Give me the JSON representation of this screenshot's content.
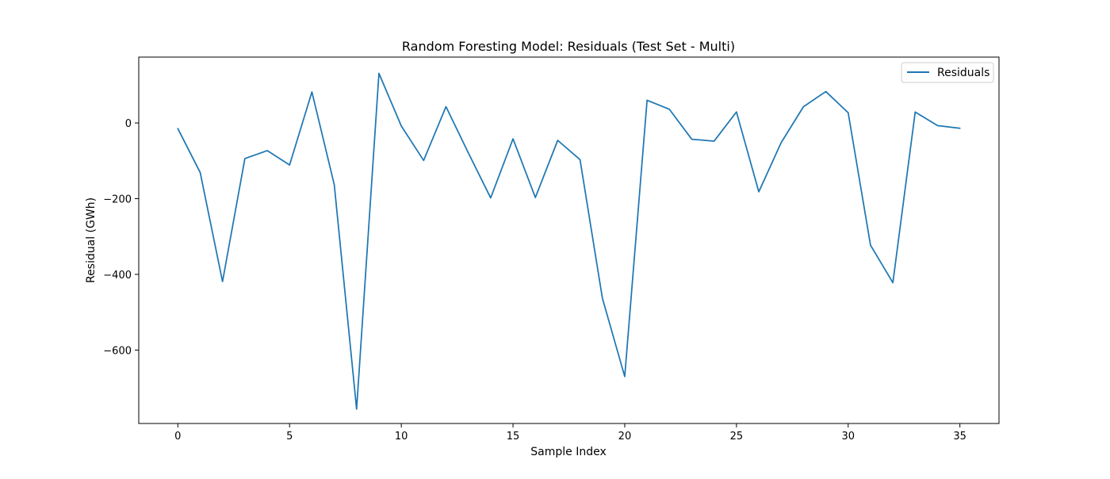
{
  "chart_data": {
    "type": "line",
    "title": "Random Foresting Model: Residuals (Test Set - Multi)",
    "xlabel": "Sample Index",
    "ylabel": "Residual (GWh)",
    "xlim": [
      -1.75,
      36.75
    ],
    "ylim": [
      -794,
      174
    ],
    "xticks": [
      0,
      5,
      10,
      15,
      20,
      25,
      30,
      35
    ],
    "yticks": [
      -600,
      -400,
      -200,
      0
    ],
    "ytick_labels": [
      "−600",
      "−400",
      "−200",
      "0"
    ],
    "grid": false,
    "legend": {
      "position": "top-right",
      "entries": [
        "Residuals"
      ]
    },
    "series": [
      {
        "name": "Residuals",
        "color": "#1f77b4",
        "x": [
          0,
          1,
          2,
          3,
          4,
          5,
          6,
          7,
          8,
          9,
          10,
          11,
          12,
          13,
          14,
          15,
          16,
          17,
          18,
          19,
          20,
          21,
          22,
          23,
          24,
          25,
          26,
          27,
          28,
          29,
          30,
          31,
          32,
          33,
          34,
          35
        ],
        "values": [
          -15,
          -131,
          -419,
          -94,
          -73,
          -111,
          82,
          -163,
          -756,
          131,
          -8,
          -99,
          43,
          -79,
          -198,
          -42,
          -197,
          -46,
          -97,
          -463,
          -670,
          60,
          36,
          -43,
          -48,
          29,
          -182,
          -52,
          43,
          83,
          27,
          -323,
          -422,
          29,
          -7,
          -14
        ]
      }
    ]
  }
}
